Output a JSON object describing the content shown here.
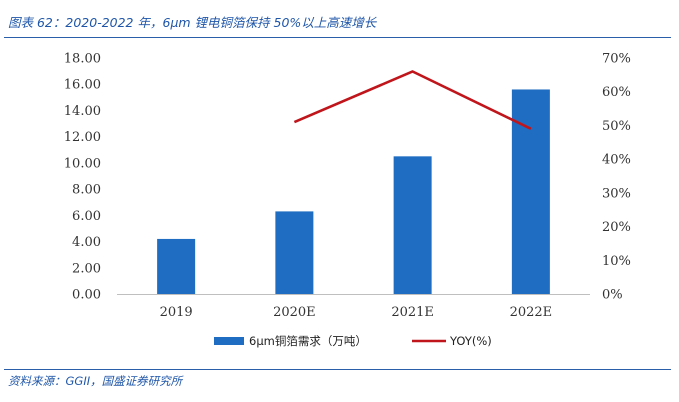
{
  "header": {
    "title": "图表 62：2020-2022 年，6μm 锂电铜箔保持 50%以上高速增长"
  },
  "footer": {
    "source": "资料来源：GGII，国盛证券研究所"
  },
  "chart_data": {
    "type": "bar",
    "categories": [
      "2019",
      "2020E",
      "2021E",
      "2022E"
    ],
    "series": [
      {
        "name": "6μm铜箔需求（万吨）",
        "kind": "bar",
        "axis": "left",
        "color": "#1f6dc2",
        "values": [
          4.2,
          6.3,
          10.5,
          15.6
        ]
      },
      {
        "name": "YOY(%)",
        "kind": "line",
        "axis": "right",
        "color": "#c0151b",
        "values": [
          null,
          51,
          66,
          49
        ]
      }
    ],
    "y_left": {
      "min": 0,
      "max": 18,
      "step": 2,
      "ticks": [
        "0.00",
        "2.00",
        "4.00",
        "6.00",
        "8.00",
        "10.00",
        "12.00",
        "14.00",
        "16.00",
        "18.00"
      ]
    },
    "y_right": {
      "min": 0,
      "max": 70,
      "step": 10,
      "ticks": [
        "0%",
        "10%",
        "20%",
        "30%",
        "40%",
        "50%",
        "60%",
        "70%"
      ]
    },
    "legend_position": "bottom",
    "grid": false
  }
}
